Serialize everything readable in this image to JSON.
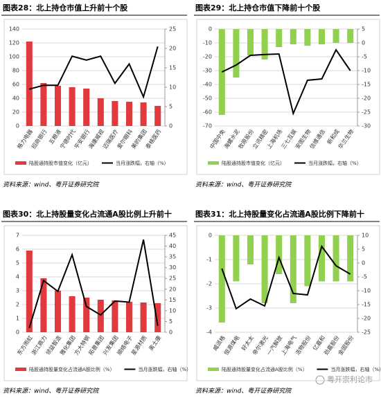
{
  "chart_data": [
    {
      "type": "bar",
      "title": "图表28：北上持仓市值上升前十个股",
      "categories": [
        "格力电器",
        "招商银行",
        "五粮液",
        "宁德时代",
        "平安银行",
        "海康威视",
        "迈瑞医疗",
        "爱尔眼科",
        "美的集团",
        "泰格医药"
      ],
      "series": [
        {
          "name": "陆股通持股市值变化（亿元）",
          "type": "bar",
          "color": "#e03a3e",
          "values": [
            122,
            62,
            58,
            56,
            54,
            40,
            36,
            35,
            34,
            29
          ]
        },
        {
          "name": "当月涨跌幅，右轴（%）",
          "type": "line",
          "axis": "y2",
          "color": "#000000",
          "values": [
            9.5,
            10.5,
            10.5,
            18,
            17,
            18,
            11,
            16,
            7.5,
            20.5
          ]
        }
      ],
      "ylim": [
        0,
        140
      ],
      "yticks": [
        0,
        20,
        40,
        60,
        80,
        100,
        120,
        140
      ],
      "y2lim": [
        0,
        25
      ],
      "y2ticks": [
        0,
        5,
        10,
        15,
        20,
        25
      ],
      "grid": true
    },
    {
      "type": "bar",
      "title": "图表29：北上持仓市值下降前十个股",
      "categories": [
        "中国中免",
        "海螺水泥",
        "牧原股份",
        "立讯精密",
        "上海机场",
        "三七互娱",
        "安图生物",
        "信维通信",
        "新和成",
        "华兰生物"
      ],
      "series": [
        {
          "name": "陆股通持股市值变化（亿元）",
          "type": "bar",
          "color": "#92d050",
          "values": [
            -62,
            -35,
            -19,
            -22,
            -13,
            -11,
            -12,
            -11,
            -10,
            -10
          ]
        },
        {
          "name": "当月涨跌幅，右轴（%）",
          "type": "line",
          "axis": "y2",
          "color": "#000000",
          "values": [
            -10.5,
            -8,
            -4.5,
            -4.2,
            -4,
            -25.5,
            -13.5,
            -13,
            -2.5,
            -10
          ]
        }
      ],
      "ylim": [
        -70,
        0
      ],
      "yticks": [
        -70,
        -60,
        -50,
        -40,
        -30,
        -20,
        -10,
        0
      ],
      "y2lim": [
        -30,
        5
      ],
      "y2ticks": [
        -30,
        -25,
        -20,
        -15,
        -10,
        -5,
        0,
        5
      ],
      "grid": true
    },
    {
      "type": "bar",
      "title": "图表30：北上持股量变化占流通A股比例上升前十",
      "categories": [
        "东方雨虹",
        "浙江鼎力",
        "领益智造",
        "雅化集团",
        "方大特钢",
        "拓普集团",
        "兴发集团",
        "顺络电子",
        "星源材质",
        "奥士康"
      ],
      "series": [
        {
          "name": "陆股通持股量变化占流通A股比例（%）",
          "type": "bar",
          "color": "#e03a3e",
          "values": [
            5.9,
            3.9,
            3.0,
            2.6,
            2.5,
            2.35,
            2.3,
            2.2,
            2.15,
            2.1
          ]
        },
        {
          "name": "当月涨跌幅，右轴（%）",
          "type": "line",
          "axis": "y2",
          "color": "#000000",
          "values": [
            2,
            24,
            19,
            36,
            12,
            8,
            14.5,
            14,
            43,
            3
          ]
        }
      ],
      "ylim": [
        0,
        7
      ],
      "yticks": [
        0,
        1,
        2,
        3,
        4,
        5,
        6,
        7
      ],
      "y2lim": [
        0,
        45
      ],
      "y2ticks": [
        0,
        5,
        10,
        15,
        20,
        25,
        30,
        35,
        40,
        45
      ],
      "grid": true
    },
    {
      "type": "bar",
      "title": "图表31：北上持股量变化占流通A股比例下降前十",
      "categories": [
        "威派格",
        "恒源煤电",
        "好太太",
        "帝尔激光",
        "一汽解放",
        "上海电气",
        "浩物股份",
        "亿嘉和",
        "劲嘉股份",
        "金固股份"
      ],
      "series": [
        {
          "name": "陆股通持股量变化占流通A股比例（%）",
          "type": "bar",
          "color": "#92d050",
          "values": [
            -3.6,
            -1.9,
            -1.2,
            -2.8,
            -1.6,
            -2.8,
            -2.1,
            -1.9,
            -1.9,
            -1.9
          ]
        },
        {
          "name": "当月涨跌幅，右轴（%）",
          "type": "line",
          "axis": "y2",
          "color": "#000000",
          "values": [
            -2,
            -16.5,
            -13,
            -15.5,
            2,
            -11,
            -11.5,
            6,
            -1,
            -4
          ]
        }
      ],
      "ylim": [
        -4,
        0
      ],
      "yticks": [
        -4,
        -3,
        -2,
        -1,
        0
      ],
      "y2lim": [
        -25,
        10
      ],
      "y2ticks": [
        -25,
        -20,
        -15,
        -10,
        -5,
        0,
        5,
        10
      ],
      "grid": true
    }
  ],
  "source": "资料来源：wind、粤开证券研究院",
  "watermark": "粤开崇利论市"
}
